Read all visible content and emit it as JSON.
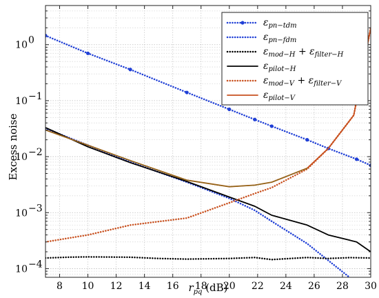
{
  "chart_data": {
    "type": "line",
    "title": "",
    "xlabel": {
      "main": "r",
      "sub": "pq",
      "unit": " (dB)"
    },
    "ylabel": "Excess noise",
    "xlim": [
      7,
      30
    ],
    "ylim": [
      7e-05,
      5
    ],
    "yscale": "log",
    "grid": true,
    "legend_position": "top-right",
    "x_ticks": [
      8,
      10,
      12,
      14,
      16,
      18,
      20,
      22,
      24,
      26,
      28,
      30
    ],
    "x_tick_labels": [
      "8",
      "10",
      "12",
      "14",
      "16",
      "18",
      "20",
      "22",
      "24",
      "26",
      "28",
      "30"
    ],
    "y_ticks": [
      {
        "value": 0.0001,
        "base": "10",
        "exp": "−4"
      },
      {
        "value": 0.001,
        "base": "10",
        "exp": "−3"
      },
      {
        "value": 0.01,
        "base": "10",
        "exp": "−2"
      },
      {
        "value": 0.1,
        "base": "10",
        "exp": "−1"
      },
      {
        "value": 1,
        "base": "10",
        "exp": "0"
      }
    ],
    "series": [
      {
        "name": "ε_pn−tdm",
        "legend": [
          {
            "t": "ε"
          },
          {
            "t": "pn−tdm",
            "sub": true
          }
        ],
        "color": "#1f3fd6",
        "style": "dotted",
        "width": 2.5,
        "marker": true,
        "x": [
          7,
          10,
          13,
          17,
          20,
          21.8,
          23,
          25.5,
          27,
          29,
          30
        ],
        "y": [
          1.45,
          0.7,
          0.36,
          0.14,
          0.07,
          0.046,
          0.035,
          0.02,
          0.014,
          0.009,
          0.007
        ]
      },
      {
        "name": "ε_pn−fdm",
        "legend": [
          {
            "t": "ε"
          },
          {
            "t": "pn−fdm",
            "sub": true
          }
        ],
        "color": "#1f3fd6",
        "style": "dotted",
        "width": 2.5,
        "marker": false,
        "x": [
          7,
          10,
          13,
          17,
          20,
          21.8,
          23,
          25.5,
          27,
          28.5,
          29
        ],
        "y": [
          0.032,
          0.016,
          0.008,
          0.0035,
          0.0018,
          0.0011,
          0.0007,
          0.00028,
          0.00014,
          7e-05,
          5e-05
        ]
      },
      {
        "name": "ε_mod−H + ε_filter−H",
        "legend": [
          {
            "t": "ε"
          },
          {
            "t": "mod−H",
            "sub": true
          },
          {
            "t": " + ",
            "plus": true
          },
          {
            "t": "ε"
          },
          {
            "t": "filter−H",
            "sub": true
          }
        ],
        "color": "#000000",
        "style": "dotted",
        "width": 2.5,
        "marker": false,
        "x": [
          7,
          8.5,
          10,
          13,
          15,
          17,
          20,
          21.8,
          23,
          25.5,
          27,
          28.5,
          30
        ],
        "y": [
          0.000155,
          0.00016,
          0.000162,
          0.00016,
          0.000152,
          0.000148,
          0.000152,
          0.000158,
          0.000145,
          0.000158,
          0.000152,
          0.000157,
          0.000155
        ]
      },
      {
        "name": "ε_pilot−H",
        "legend": [
          {
            "t": "ε"
          },
          {
            "t": "pilot−H",
            "sub": true
          }
        ],
        "color": "#000000",
        "style": "solid",
        "width": 1.8,
        "marker": false,
        "x": [
          7,
          10,
          13,
          17,
          20,
          21.8,
          23,
          25.5,
          27,
          29,
          30
        ],
        "y": [
          0.033,
          0.015,
          0.0078,
          0.0036,
          0.0019,
          0.0013,
          0.0009,
          0.0006,
          0.0004,
          0.0003,
          0.0002
        ]
      },
      {
        "name": "ε_mod−V + ε_filter−V",
        "legend": [
          {
            "t": "ε"
          },
          {
            "t": "mod−V",
            "sub": true
          },
          {
            "t": " + ",
            "plus": true
          },
          {
            "t": "ε"
          },
          {
            "t": "filter−V",
            "sub": true
          }
        ],
        "color": "#c8501e",
        "style": "dotted",
        "width": 2.5,
        "marker": false,
        "x": [
          7,
          10,
          13,
          17,
          20,
          21.8,
          23,
          25.5,
          27,
          28.8,
          30
        ],
        "y": [
          0.0003,
          0.0004,
          0.0006,
          0.0008,
          0.0015,
          0.0022,
          0.0028,
          0.006,
          0.014,
          0.055,
          2.0
        ]
      },
      {
        "name": "ε_pilot−V",
        "legend": [
          {
            "t": "ε"
          },
          {
            "t": "pilot−V",
            "sub": true
          }
        ],
        "color": "#c8501e",
        "style": "solid",
        "width": 1.8,
        "marker": false,
        "x": [
          7,
          10,
          13,
          17,
          20,
          21.8,
          23,
          25.5,
          27,
          28.8,
          30
        ],
        "y": [
          0.03,
          0.016,
          0.0085,
          0.0038,
          0.0029,
          0.0031,
          0.0035,
          0.0062,
          0.014,
          0.055,
          2.0
        ]
      },
      {
        "name": "",
        "legend": null,
        "color": "#8a6a1a",
        "style": "solid",
        "width": 1.4,
        "marker": false,
        "x": [
          7,
          10,
          13,
          17,
          20,
          21.8,
          23,
          25.5
        ],
        "y": [
          0.03,
          0.016,
          0.0085,
          0.0038,
          0.0029,
          0.0031,
          0.0035,
          0.0062
        ]
      }
    ]
  }
}
